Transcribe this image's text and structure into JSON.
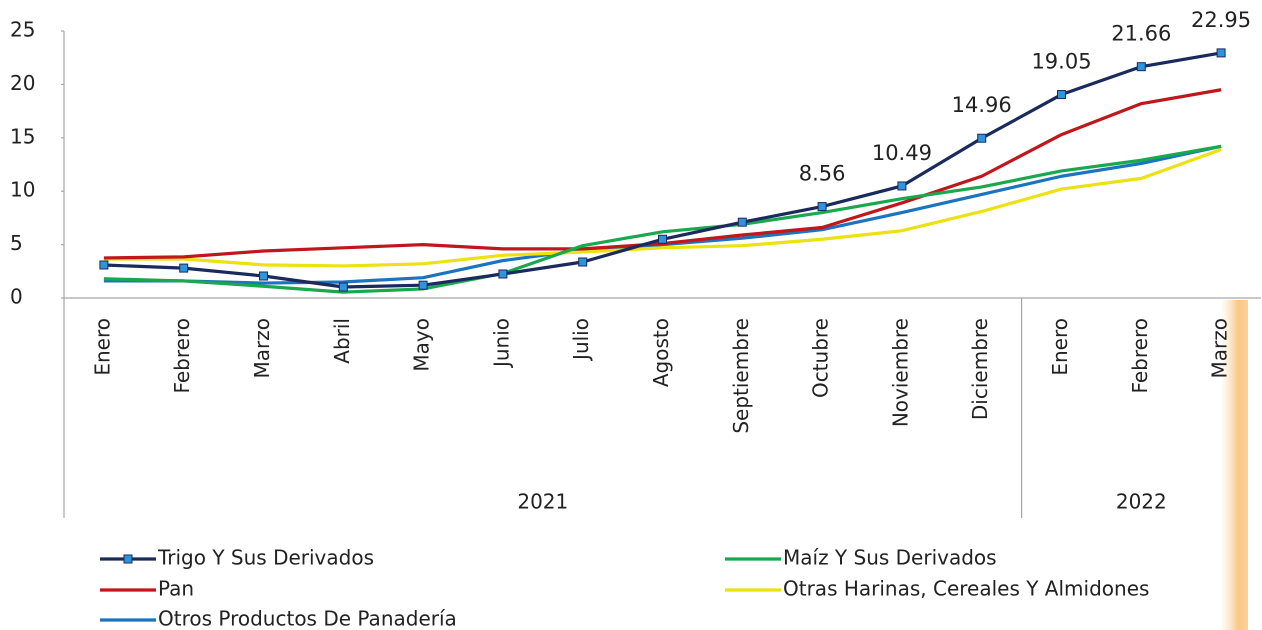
{
  "chart_data": {
    "type": "line",
    "categories": [
      "Enero",
      "Febrero",
      "Marzo",
      "Abril",
      "Mayo",
      "Junio",
      "Julio",
      "Agosto",
      "Septiembre",
      "Octubre",
      "Noviembre",
      "Diciembre",
      "Enero",
      "Febrero",
      "Marzo"
    ],
    "category_groups": [
      {
        "label": "2021",
        "count": 12
      },
      {
        "label": "2022",
        "count": 3
      }
    ],
    "series": [
      {
        "name": "Trigo Y Sus Derivados",
        "color": "#1b2a5c",
        "marker_color": "#2e95dc",
        "marker": "square",
        "values": [
          3.09,
          2.8,
          2.06,
          1.03,
          1.2,
          2.25,
          3.37,
          5.5,
          7.1,
          8.56,
          10.49,
          14.96,
          19.05,
          21.66,
          22.95
        ],
        "value_labels": [
          null,
          null,
          null,
          null,
          null,
          null,
          null,
          null,
          null,
          "8.56",
          "10.49",
          "14.96",
          "19.05",
          "21.66",
          "22.95"
        ]
      },
      {
        "name": "Maíz Y Sus Derivados",
        "color": "#1aa84f",
        "values": [
          1.8,
          1.6,
          1.1,
          0.55,
          0.85,
          2.3,
          4.9,
          6.2,
          6.9,
          8.0,
          9.3,
          10.4,
          11.9,
          12.9,
          14.2
        ]
      },
      {
        "name": "Pan",
        "color": "#c0161c",
        "values": [
          3.75,
          3.85,
          4.4,
          4.7,
          5.0,
          4.6,
          4.6,
          5.1,
          5.9,
          6.6,
          8.9,
          11.4,
          15.3,
          18.2,
          19.5
        ]
      },
      {
        "name": "Otras Harinas, Cereales Y Almidones",
        "color": "#ece111",
        "values": [
          3.65,
          3.65,
          3.1,
          3.0,
          3.2,
          4.0,
          4.3,
          4.7,
          4.9,
          5.5,
          6.3,
          8.1,
          10.2,
          11.2,
          13.9
        ]
      },
      {
        "name": "Otros Productos De Panadería",
        "color": "#1a74bf",
        "values": [
          1.6,
          1.6,
          1.4,
          1.5,
          1.9,
          3.5,
          4.5,
          5.0,
          5.6,
          6.4,
          8.0,
          9.7,
          11.4,
          12.6,
          14.2
        ]
      }
    ],
    "ylim": [
      0,
      25
    ],
    "yticks": [
      0,
      5,
      10,
      15,
      20,
      25
    ],
    "grid": false,
    "legend": "bottom"
  }
}
